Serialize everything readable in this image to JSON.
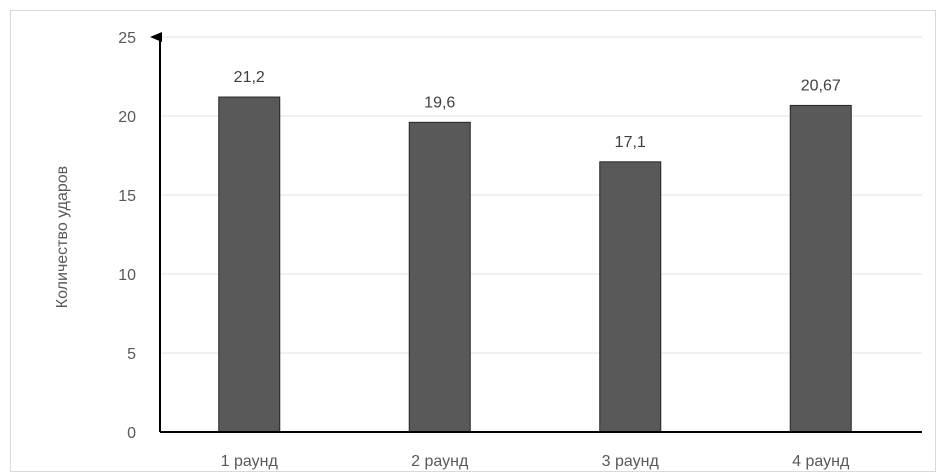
{
  "chart_data": {
    "type": "bar",
    "title": "",
    "xlabel": "",
    "ylabel": "Количество ударов",
    "categories": [
      "1 раунд",
      "2 раунд",
      "3 раунд",
      "4 раунд"
    ],
    "values": [
      21.2,
      19.6,
      17.1,
      20.67
    ],
    "value_labels": [
      "21,2",
      "19,6",
      "17,1",
      "20,67"
    ],
    "ylim": [
      0,
      25
    ],
    "yticks": [
      0,
      5,
      10,
      15,
      20,
      25
    ],
    "grid": true,
    "legend": "none",
    "bar_color": "#595959",
    "bar_edge_color": "#262626",
    "grid_color": "#e0e0e0",
    "axis_color": "#000000"
  }
}
